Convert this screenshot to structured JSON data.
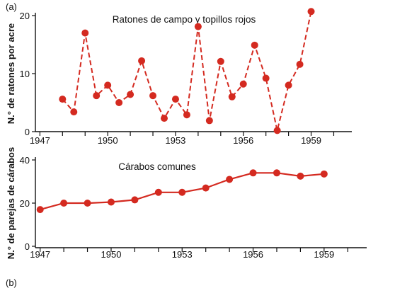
{
  "colors": {
    "series": "#d42a20",
    "axis": "#111111"
  },
  "chart_data": [
    {
      "type": "line",
      "panel_label": "(a)",
      "title": "Ratones de campo y topillos rojos",
      "ylabel": "N.° de ratones por acre",
      "xlabel": "",
      "xlim": [
        1946.8,
        1960.8
      ],
      "ylim": [
        0,
        20
      ],
      "xticks": [
        1947,
        1948,
        1949,
        1950,
        1951,
        1952,
        1953,
        1954,
        1955,
        1956,
        1957,
        1958,
        1959,
        1960
      ],
      "xtick_labels": [
        "1947",
        "1950",
        "1953",
        "1956",
        "1959"
      ],
      "yticks": [
        0,
        10,
        20
      ],
      "line_style": "dashed",
      "series": [
        {
          "x": [
            1948.0,
            1948.5,
            1949.0,
            1949.5,
            1950.0,
            1950.5,
            1951.0,
            1951.5,
            1952.0,
            1952.5,
            1953.0,
            1953.5,
            1954.0,
            1954.5,
            1955.0,
            1955.5,
            1956.0,
            1956.5,
            1957.0,
            1957.5,
            1958.0,
            1958.5,
            1959.0
          ],
          "values": [
            5.6,
            3.4,
            17.0,
            6.2,
            8.0,
            5.0,
            6.4,
            12.2,
            6.2,
            2.3,
            5.6,
            2.9,
            18.1,
            1.9,
            12.1,
            6.0,
            8.2,
            14.9,
            9.2,
            0.2,
            8.0,
            11.6,
            20.7
          ]
        }
      ]
    },
    {
      "type": "line",
      "panel_label": "(b)",
      "title": "Cárabos comunes",
      "ylabel": "N.° de parejas de cárabos",
      "xlabel": "",
      "xlim": [
        1946.8,
        1960.8
      ],
      "ylim": [
        0,
        40
      ],
      "xticks": [
        1947,
        1948,
        1949,
        1950,
        1951,
        1952,
        1953,
        1954,
        1955,
        1956,
        1957,
        1958,
        1959,
        1960
      ],
      "xtick_labels": [
        "1947",
        "1950",
        "1953",
        "1956",
        "1959"
      ],
      "yticks": [
        0,
        20,
        40
      ],
      "line_style": "solid",
      "series": [
        {
          "x": [
            1947,
            1948,
            1949,
            1950,
            1951,
            1952,
            1953,
            1954,
            1955,
            1956,
            1957,
            1958,
            1959
          ],
          "values": [
            17,
            20,
            20,
            20.5,
            21.5,
            25,
            25,
            27,
            31,
            34,
            34,
            32.5,
            33.5
          ]
        }
      ]
    }
  ]
}
